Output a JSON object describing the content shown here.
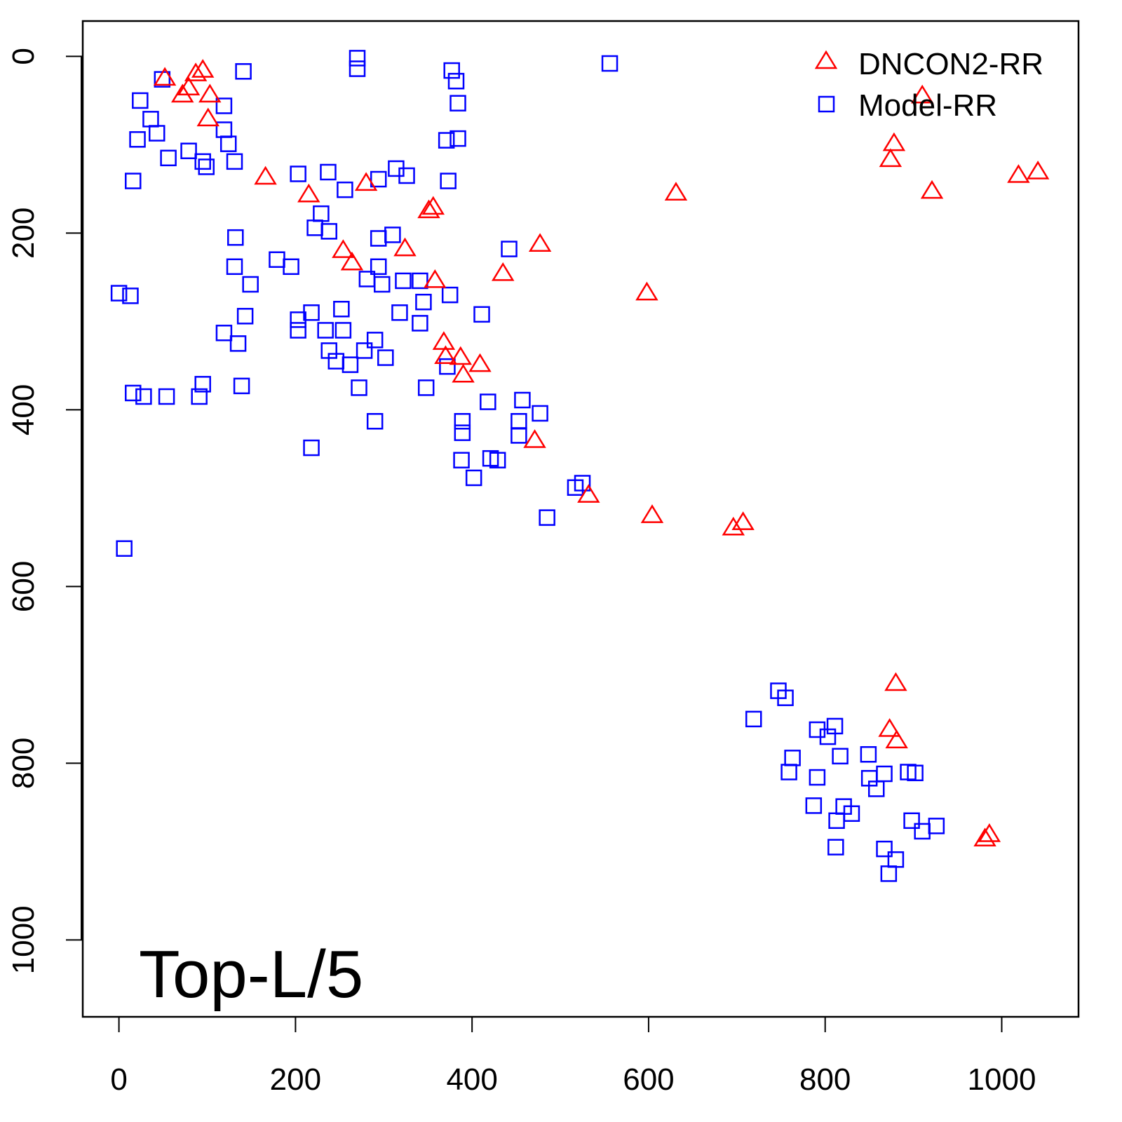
{
  "chart_data": {
    "type": "scatter",
    "title": "",
    "annotation": "Top-L/5",
    "xlabel": "",
    "ylabel": "",
    "xlim": [
      -41,
      1087
    ],
    "ylim": [
      -40,
      1087
    ],
    "y_inverted": true,
    "grid": false,
    "legend_position": "top-right",
    "xticks": [
      0,
      200,
      400,
      600,
      800,
      1000
    ],
    "yticks": [
      0,
      200,
      400,
      600,
      800,
      1000
    ],
    "xtick_labels": [
      "0",
      "200",
      "400",
      "600",
      "800",
      "1000"
    ],
    "ytick_labels": [
      "0",
      "200",
      "400",
      "600",
      "800",
      "1000"
    ],
    "series": [
      {
        "name": "DNCON2-RR",
        "marker": "triangle",
        "color": "#ff0000",
        "points": [
          [
            52,
            25
          ],
          [
            72,
            44
          ],
          [
            87,
            20
          ],
          [
            95,
            16
          ],
          [
            79,
            36
          ],
          [
            103,
            44
          ],
          [
            101,
            71
          ],
          [
            166,
            137
          ],
          [
            215,
            157
          ],
          [
            280,
            144
          ],
          [
            351,
            175
          ],
          [
            356,
            171
          ],
          [
            254,
            220
          ],
          [
            264,
            234
          ],
          [
            324,
            218
          ],
          [
            358,
            254
          ],
          [
            435,
            246
          ],
          [
            477,
            213
          ],
          [
            368,
            324
          ],
          [
            370,
            340
          ],
          [
            387,
            341
          ],
          [
            390,
            361
          ],
          [
            409,
            349
          ],
          [
            471,
            435
          ],
          [
            532,
            497
          ],
          [
            604,
            520
          ],
          [
            598,
            268
          ],
          [
            631,
            155
          ],
          [
            696,
            534
          ],
          [
            707,
            528
          ],
          [
            878,
            99
          ],
          [
            874,
            117
          ],
          [
            910,
            45
          ],
          [
            921,
            153
          ],
          [
            1019,
            135
          ],
          [
            1041,
            131
          ],
          [
            880,
            710
          ],
          [
            873,
            762
          ],
          [
            881,
            775
          ],
          [
            986,
            881
          ],
          [
            981,
            886
          ]
        ]
      },
      {
        "name": "Model-RR",
        "marker": "square",
        "color": "#0000ff",
        "points": [
          [
            24,
            50
          ],
          [
            21,
            94
          ],
          [
            16,
            141
          ],
          [
            49,
            26
          ],
          [
            36,
            71
          ],
          [
            43,
            87
          ],
          [
            56,
            115
          ],
          [
            79,
            107
          ],
          [
            95,
            119
          ],
          [
            99,
            125
          ],
          [
            119,
            56
          ],
          [
            119,
            83
          ],
          [
            124,
            99
          ],
          [
            141,
            17
          ],
          [
            131,
            119
          ],
          [
            0,
            268
          ],
          [
            13,
            271
          ],
          [
            6,
            557
          ],
          [
            16,
            381
          ],
          [
            28,
            385
          ],
          [
            54,
            385
          ],
          [
            91,
            385
          ],
          [
            95,
            371
          ],
          [
            139,
            373
          ],
          [
            132,
            205
          ],
          [
            131,
            238
          ],
          [
            149,
            258
          ],
          [
            143,
            294
          ],
          [
            119,
            313
          ],
          [
            135,
            325
          ],
          [
            179,
            230
          ],
          [
            195,
            238
          ],
          [
            203,
            133
          ],
          [
            237,
            131
          ],
          [
            256,
            151
          ],
          [
            229,
            178
          ],
          [
            222,
            194
          ],
          [
            238,
            198
          ],
          [
            203,
            298
          ],
          [
            203,
            310
          ],
          [
            218,
            290
          ],
          [
            218,
            443
          ],
          [
            234,
            310
          ],
          [
            252,
            286
          ],
          [
            254,
            310
          ],
          [
            238,
            333
          ],
          [
            246,
            345
          ],
          [
            262,
            349
          ],
          [
            272,
            375
          ],
          [
            278,
            333
          ],
          [
            290,
            321
          ],
          [
            302,
            341
          ],
          [
            290,
            413
          ],
          [
            281,
            252
          ],
          [
            294,
            206
          ],
          [
            294,
            238
          ],
          [
            298,
            258
          ],
          [
            310,
            202
          ],
          [
            322,
            254
          ],
          [
            294,
            139
          ],
          [
            314,
            127
          ],
          [
            326,
            135
          ],
          [
            270,
            2
          ],
          [
            270,
            14
          ],
          [
            318,
            290
          ],
          [
            341,
            302
          ],
          [
            341,
            254
          ],
          [
            345,
            278
          ],
          [
            348,
            375
          ],
          [
            375,
            270
          ],
          [
            372,
            351
          ],
          [
            371,
            95
          ],
          [
            373,
            141
          ],
          [
            377,
            16
          ],
          [
            382,
            28
          ],
          [
            384,
            53
          ],
          [
            384,
            93
          ],
          [
            411,
            292
          ],
          [
            442,
            218
          ],
          [
            418,
            391
          ],
          [
            389,
            413
          ],
          [
            389,
            426
          ],
          [
            453,
            413
          ],
          [
            457,
            389
          ],
          [
            453,
            429
          ],
          [
            477,
            404
          ],
          [
            388,
            457
          ],
          [
            402,
            477
          ],
          [
            421,
            455
          ],
          [
            429,
            457
          ],
          [
            525,
            483
          ],
          [
            517,
            488
          ],
          [
            485,
            522
          ],
          [
            556,
            8
          ],
          [
            719,
            750
          ],
          [
            747,
            718
          ],
          [
            755,
            726
          ],
          [
            763,
            794
          ],
          [
            759,
            810
          ],
          [
            791,
            816
          ],
          [
            791,
            762
          ],
          [
            803,
            770
          ],
          [
            811,
            758
          ],
          [
            817,
            792
          ],
          [
            787,
            848
          ],
          [
            813,
            865
          ],
          [
            812,
            895
          ],
          [
            821,
            849
          ],
          [
            830,
            857
          ],
          [
            849,
            790
          ],
          [
            850,
            817
          ],
          [
            858,
            829
          ],
          [
            867,
            812
          ],
          [
            867,
            897
          ],
          [
            872,
            925
          ],
          [
            880,
            909
          ],
          [
            894,
            810
          ],
          [
            902,
            811
          ],
          [
            898,
            865
          ],
          [
            910,
            877
          ],
          [
            926,
            871
          ]
        ]
      }
    ]
  }
}
